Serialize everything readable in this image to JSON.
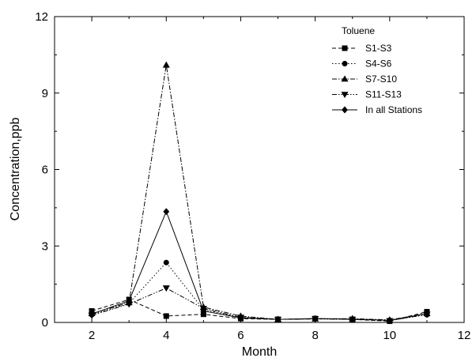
{
  "chart_data": {
    "type": "line",
    "xlabel": "Month",
    "ylabel": "Concentration,ppb",
    "xlim": [
      1,
      12
    ],
    "ylim": [
      0,
      12
    ],
    "x_ticks": [
      2,
      4,
      6,
      8,
      10,
      12
    ],
    "y_ticks": [
      0,
      3,
      6,
      9,
      12
    ],
    "legend": {
      "title": "Toluene",
      "placement": "top-right"
    },
    "x": [
      2,
      3,
      4,
      5,
      6,
      7,
      8,
      9,
      10,
      11
    ],
    "series": [
      {
        "name": "S1-S3",
        "marker": "square",
        "dash": "dashed",
        "values": [
          0.45,
          0.9,
          0.25,
          0.32,
          0.15,
          0.12,
          0.15,
          0.12,
          0.05,
          0.42
        ]
      },
      {
        "name": "S4-S6",
        "marker": "circle",
        "dash": "dotted",
        "values": [
          0.3,
          0.75,
          2.35,
          0.5,
          0.2,
          0.12,
          0.14,
          0.12,
          0.08,
          0.3
        ]
      },
      {
        "name": "S7-S10",
        "marker": "triangle-up",
        "dash": "dashdot",
        "values": [
          0.35,
          0.78,
          10.1,
          0.6,
          0.25,
          0.12,
          0.14,
          0.15,
          0.1,
          0.35
        ]
      },
      {
        "name": "S11-S13",
        "marker": "triangle-down",
        "dash": "dashdotdot",
        "values": [
          0.28,
          0.72,
          1.35,
          0.55,
          0.2,
          0.12,
          0.14,
          0.12,
          0.07,
          0.32
        ]
      },
      {
        "name": "In all Stations",
        "marker": "diamond",
        "dash": "solid",
        "values": [
          0.33,
          0.85,
          4.35,
          0.45,
          0.18,
          0.12,
          0.15,
          0.13,
          0.08,
          0.35
        ]
      }
    ]
  }
}
